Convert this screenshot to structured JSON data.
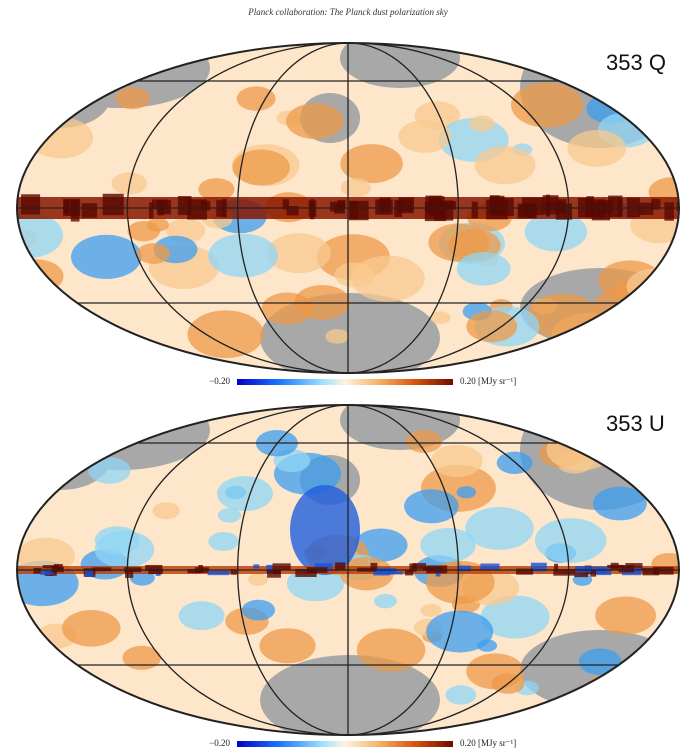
{
  "header": {
    "title": "Planck collaboration: The Planck dust polarization sky"
  },
  "panels": [
    {
      "label": "353 Q",
      "colorbar": {
        "min_label": "−0.20",
        "max_label": "0.20 [MJy sr⁻¹]"
      }
    },
    {
      "label": "353 U",
      "colorbar": {
        "min_label": "−0.20",
        "max_label": "0.20 [MJy sr⁻¹]"
      }
    }
  ]
}
